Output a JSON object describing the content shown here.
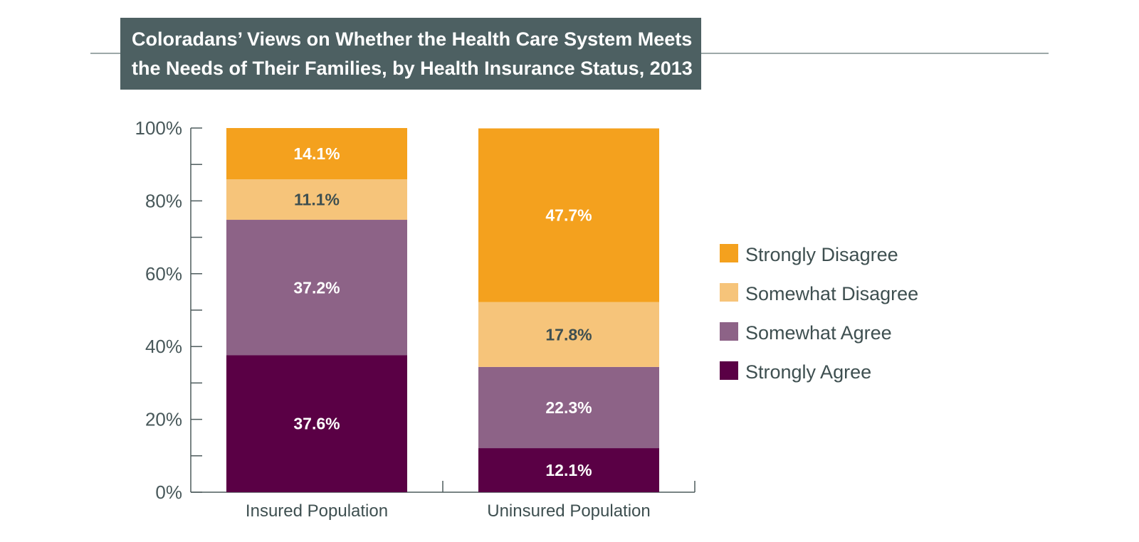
{
  "title_lines": [
    "Coloradans’ Views on Whether the Health Care System Meets",
    "the Needs of Their Families, by Health Insurance Status, 2013"
  ],
  "colors": {
    "title_bg": "#4d6062",
    "rule": "#7d8b8c",
    "axis": "#4d5b5c",
    "label_dark": "#3e4f50"
  },
  "chart_data": {
    "type": "bar",
    "stacked": true,
    "categories": [
      "Insured Population",
      "Uninsured Population"
    ],
    "series": [
      {
        "name": "Strongly Agree",
        "values": [
          37.6,
          12.1
        ],
        "labels": [
          "37.6%",
          "12.1%"
        ],
        "color": "#5a0045",
        "label_color": "#ffffff"
      },
      {
        "name": "Somewhat Agree",
        "values": [
          37.2,
          22.3
        ],
        "labels": [
          "37.2%",
          "22.3%"
        ],
        "color": "#8d6387",
        "label_color": "#ffffff"
      },
      {
        "name": "Somewhat Disagree",
        "values": [
          11.1,
          17.8
        ],
        "labels": [
          "11.1%",
          "17.8%"
        ],
        "color": "#f6c47a",
        "label_color": "#3e4f50"
      },
      {
        "name": "Strongly Disagree",
        "values": [
          14.1,
          47.7
        ],
        "labels": [
          "14.1%",
          "47.7%"
        ],
        "color": "#f4a11e",
        "label_color": "#ffffff"
      }
    ],
    "ylim": [
      0,
      100
    ],
    "yticks": [
      0,
      20,
      40,
      60,
      80,
      100
    ],
    "ytick_labels": [
      "0%",
      "20%",
      "40%",
      "60%",
      "80%",
      "100%"
    ],
    "legend_order": [
      "Strongly Disagree",
      "Somewhat Disagree",
      "Somewhat Agree",
      "Strongly Agree"
    ],
    "legend_position": "right",
    "grid": false
  }
}
